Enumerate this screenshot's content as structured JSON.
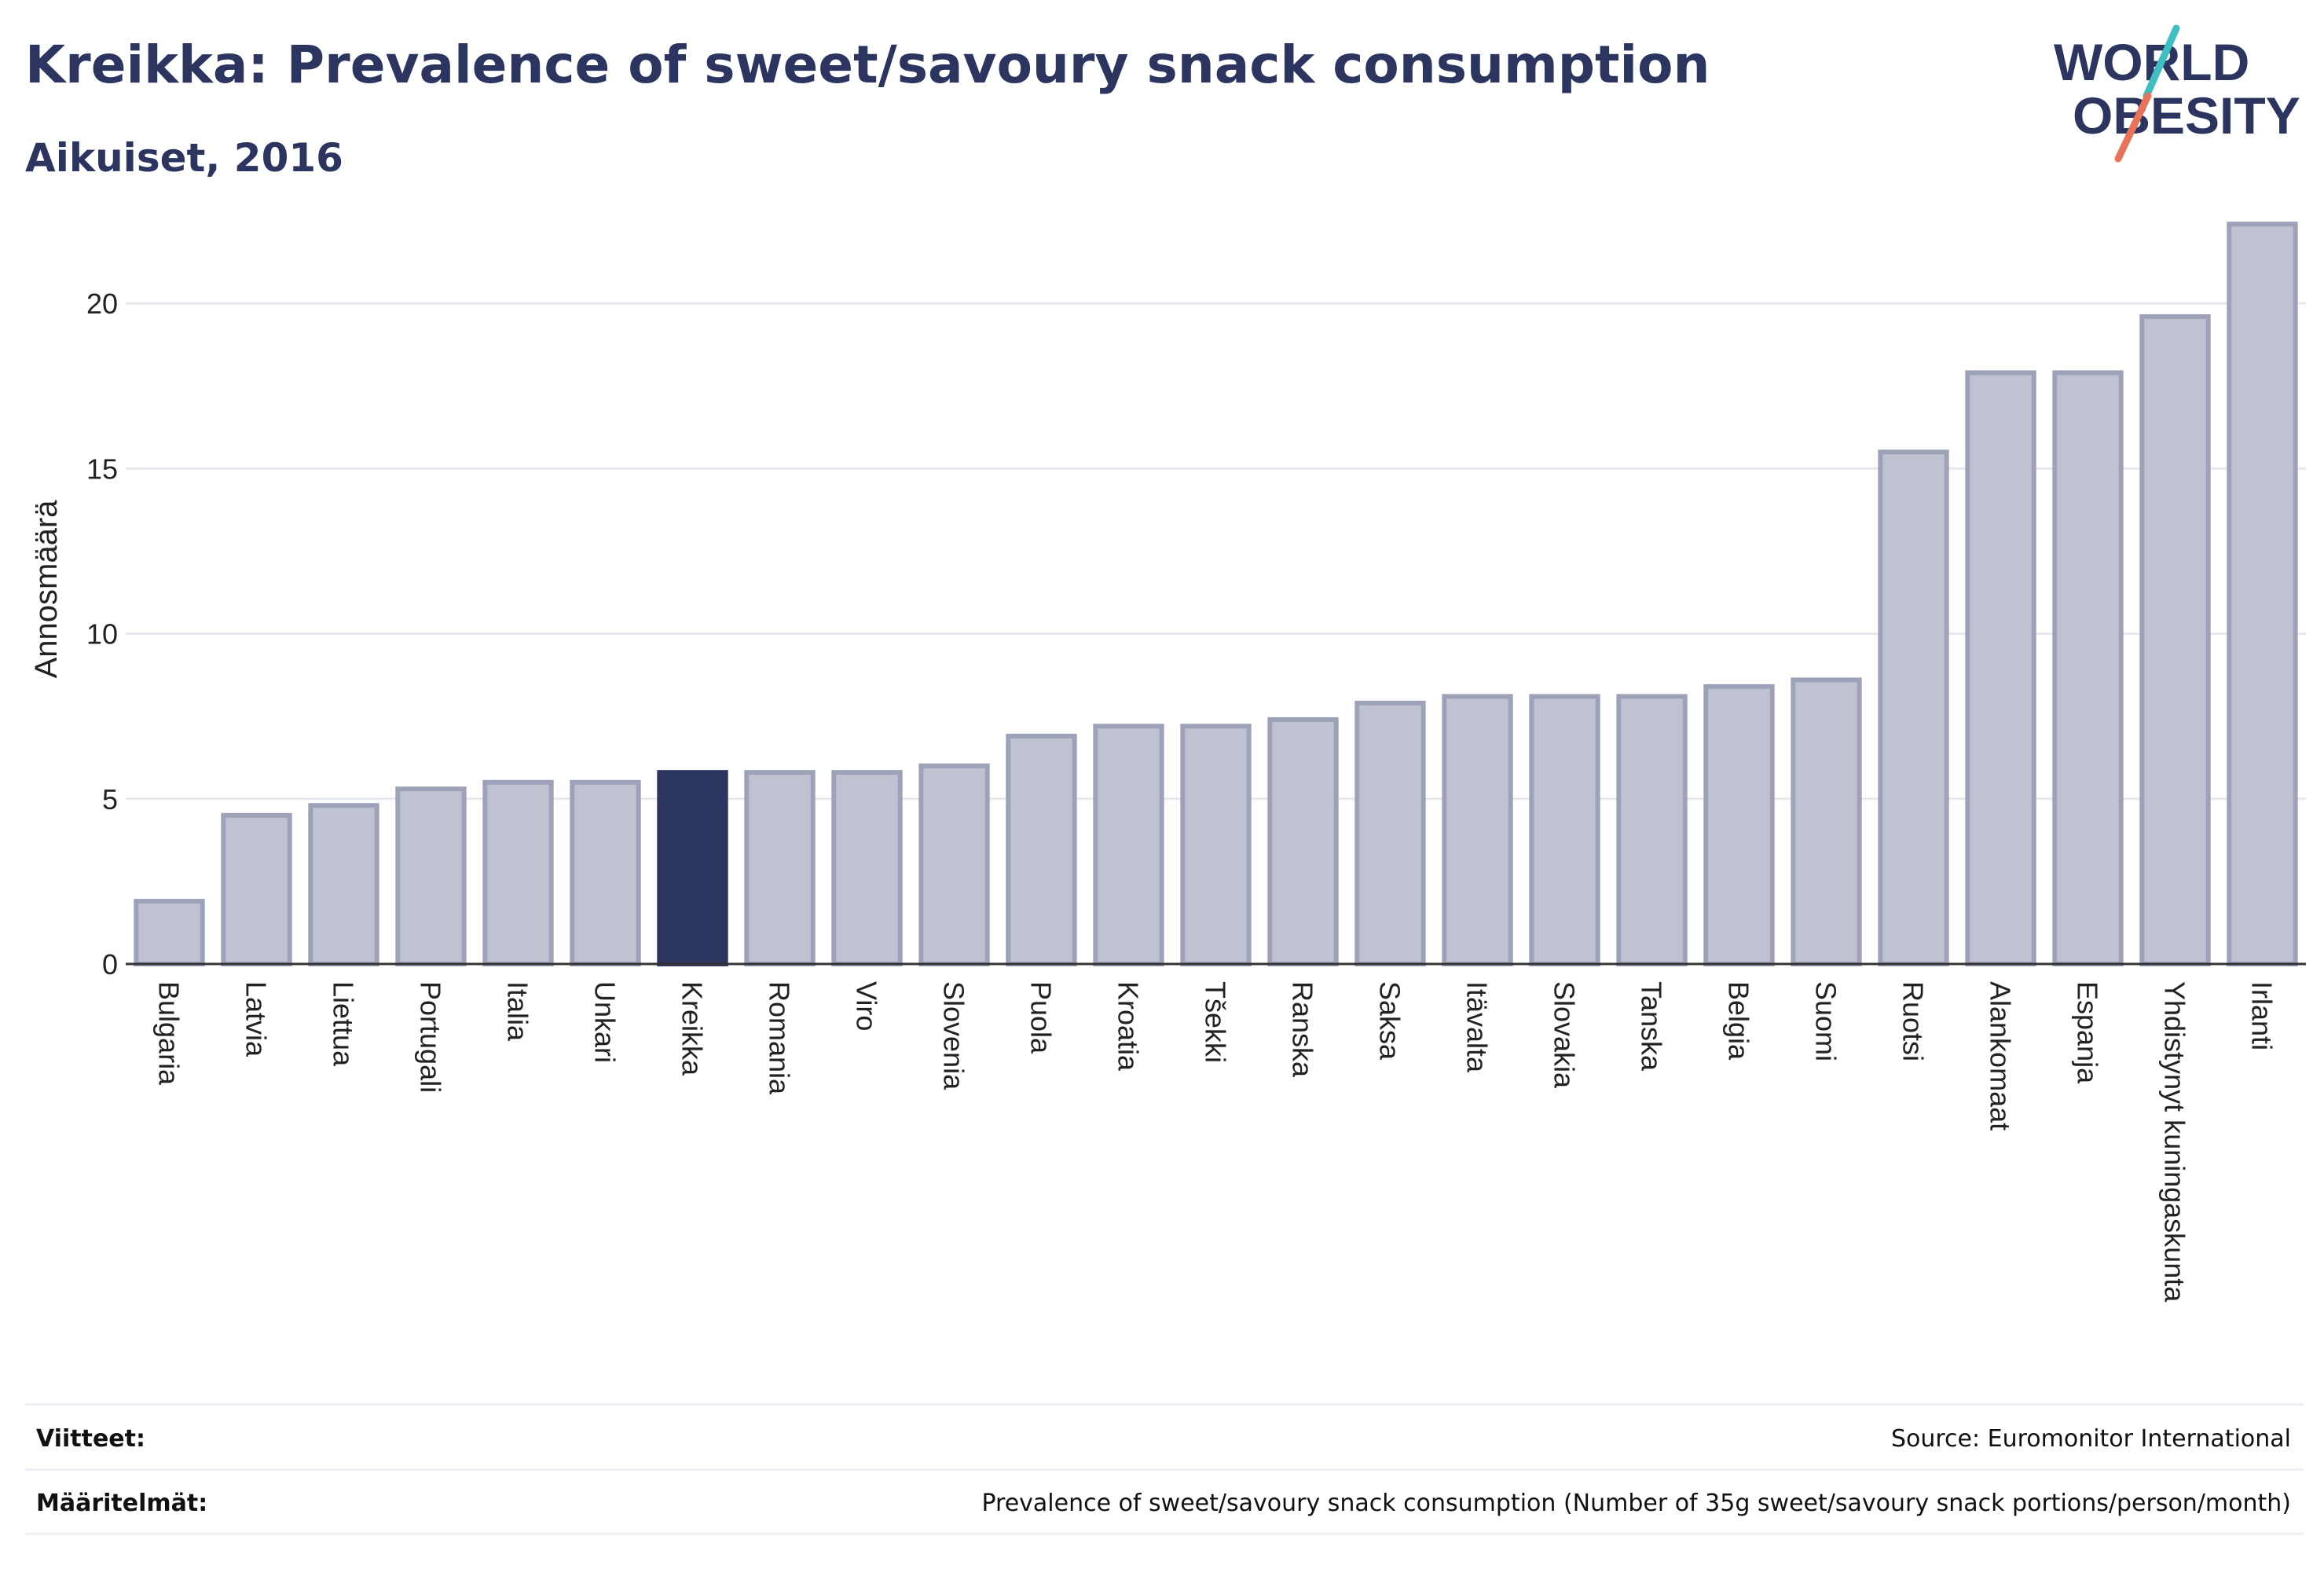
{
  "header": {
    "title": "Kreikka: Prevalence of sweet/savoury snack consumption",
    "subtitle": "Aikuiset, 2016"
  },
  "logo": {
    "line1": "WORLD",
    "line2": "OBESITY",
    "text_color": "#2b3560",
    "slash_colors": [
      "#3fbfbf",
      "#e8735a"
    ]
  },
  "chart_data": {
    "type": "bar",
    "title": "Kreikka: Prevalence of sweet/savoury snack consumption",
    "subtitle": "Aikuiset, 2016",
    "xlabel": "",
    "ylabel": "Annosmäärä",
    "ylim": [
      0,
      23
    ],
    "yticks": [
      0,
      5,
      10,
      15,
      20
    ],
    "grid": true,
    "highlight": "Kreikka",
    "colors": {
      "bar": "#bfc2d0",
      "bar_border": "#9da2b8",
      "highlight": "#2b3560"
    },
    "categories": [
      "Bulgaria",
      "Latvia",
      "Liettua",
      "Portugali",
      "Italia",
      "Unkari",
      "Kreikka",
      "Romania",
      "Viro",
      "Slovenia",
      "Puola",
      "Kroatia",
      "Tšekki",
      "Ranska",
      "Saksa",
      "Itävalta",
      "Slovakia",
      "Tanska",
      "Belgia",
      "Suomi",
      "Ruotsi",
      "Alankomaat",
      "Espanja",
      "Yhdistynyt kuningaskunta",
      "Irlanti"
    ],
    "values": [
      1.9,
      4.5,
      4.8,
      5.3,
      5.5,
      5.5,
      5.8,
      5.8,
      5.8,
      6.0,
      6.9,
      7.2,
      7.2,
      7.4,
      7.9,
      8.1,
      8.1,
      8.1,
      8.4,
      8.6,
      15.5,
      17.9,
      17.9,
      19.6,
      22.4
    ]
  },
  "footer": {
    "references_label": "Viitteet:",
    "references_value": "Source: Euromonitor International",
    "definitions_label": "Määritelmät:",
    "definitions_value": "Prevalence of sweet/savoury snack consumption (Number of 35g sweet/savoury snack portions/person/month)"
  }
}
